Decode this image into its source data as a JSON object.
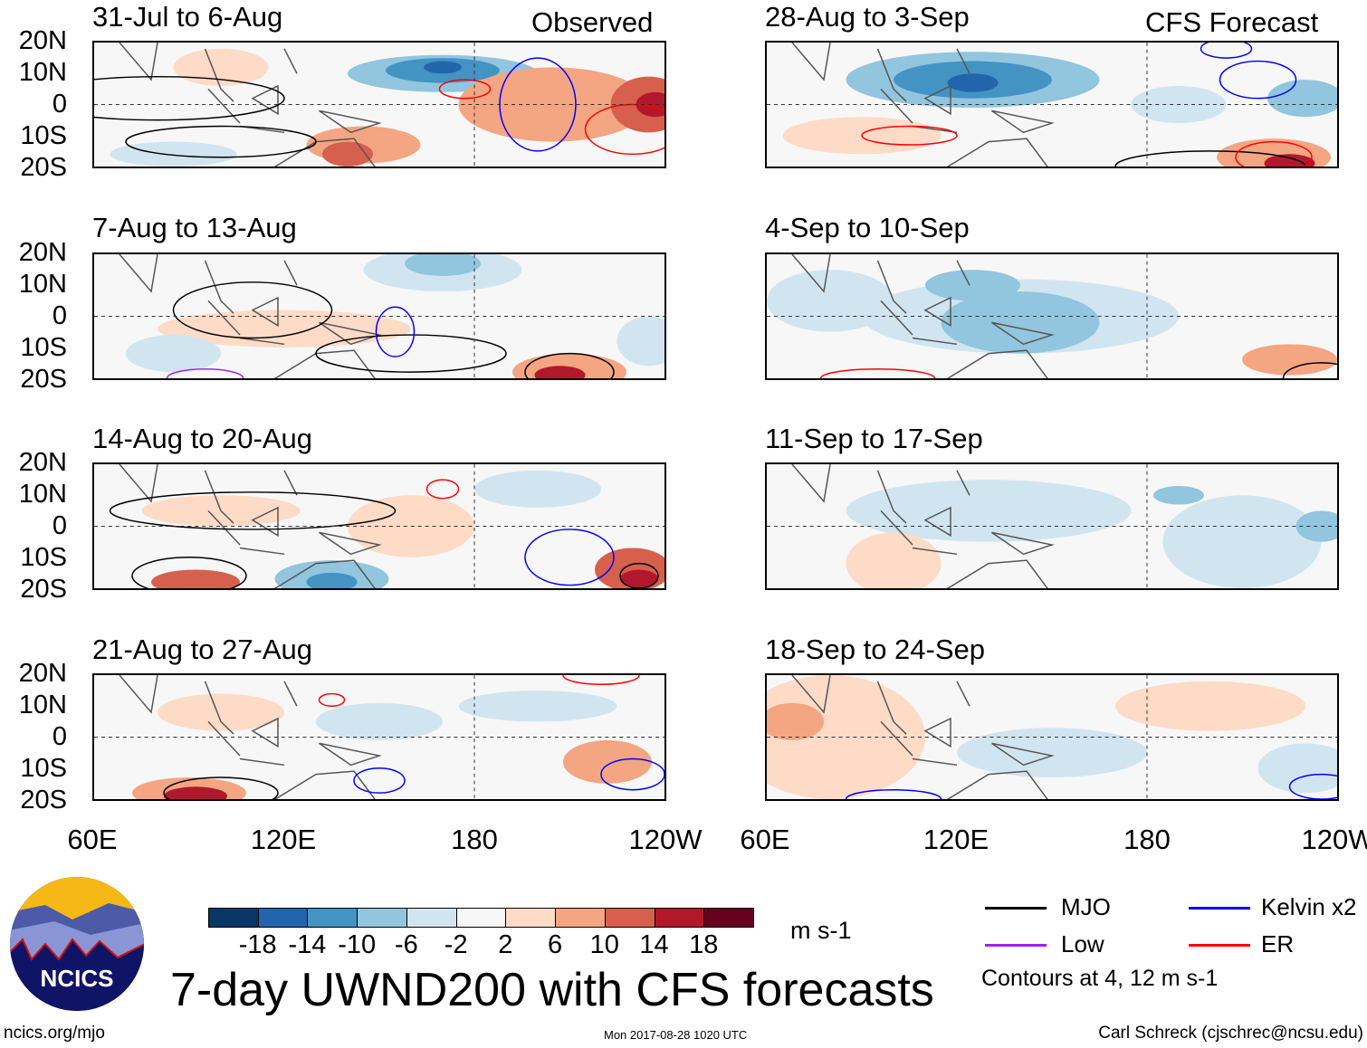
{
  "columns": {
    "left": "Observed",
    "right": "CFS Forecast"
  },
  "panels": [
    {
      "title": "31-Jul to 6-Aug",
      "source": "observed"
    },
    {
      "title": "7-Aug to 13-Aug",
      "source": "observed"
    },
    {
      "title": "14-Aug to 20-Aug",
      "source": "observed"
    },
    {
      "title": "21-Aug to 27-Aug",
      "source": "observed"
    },
    {
      "title": "28-Aug to 3-Sep",
      "source": "forecast"
    },
    {
      "title": "4-Sep to 10-Sep",
      "source": "forecast"
    },
    {
      "title": "11-Sep to 17-Sep",
      "source": "forecast"
    },
    {
      "title": "18-Sep to 24-Sep",
      "source": "forecast"
    }
  ],
  "lat_labels": [
    "20N",
    "10N",
    "0",
    "10S",
    "20S"
  ],
  "lon_labels": [
    "60E",
    "120E",
    "180",
    "120W"
  ],
  "colorbar": {
    "colors": [
      "#0b3766",
      "#2166ac",
      "#4393c3",
      "#92c5de",
      "#d1e5f0",
      "#f7f7f7",
      "#fddbc7",
      "#f4a582",
      "#d6604d",
      "#b2182b",
      "#67001f"
    ],
    "labels": [
      "-18",
      "-14",
      "-10",
      "-6",
      "-2",
      "2",
      "6",
      "10",
      "14",
      "18"
    ],
    "units": "m s-1"
  },
  "legend": {
    "items": [
      {
        "label": "MJO",
        "color": "#000000"
      },
      {
        "label": "Kelvin x2",
        "color": "#0000ff"
      },
      {
        "label": "Low",
        "color": "#a020f0"
      },
      {
        "label": "ER",
        "color": "#ff0000"
      }
    ],
    "note": "Contours at 4, 12 m s-1"
  },
  "title": "7-day UWND200 with CFS forecasts",
  "logo_text": "NCICS",
  "footer": {
    "url": "ncics.org/mjo",
    "timestamp": "Mon 2017-08-28 1020 UTC",
    "credit": "Carl Schreck (cjschrec@ncsu.edu)"
  }
}
